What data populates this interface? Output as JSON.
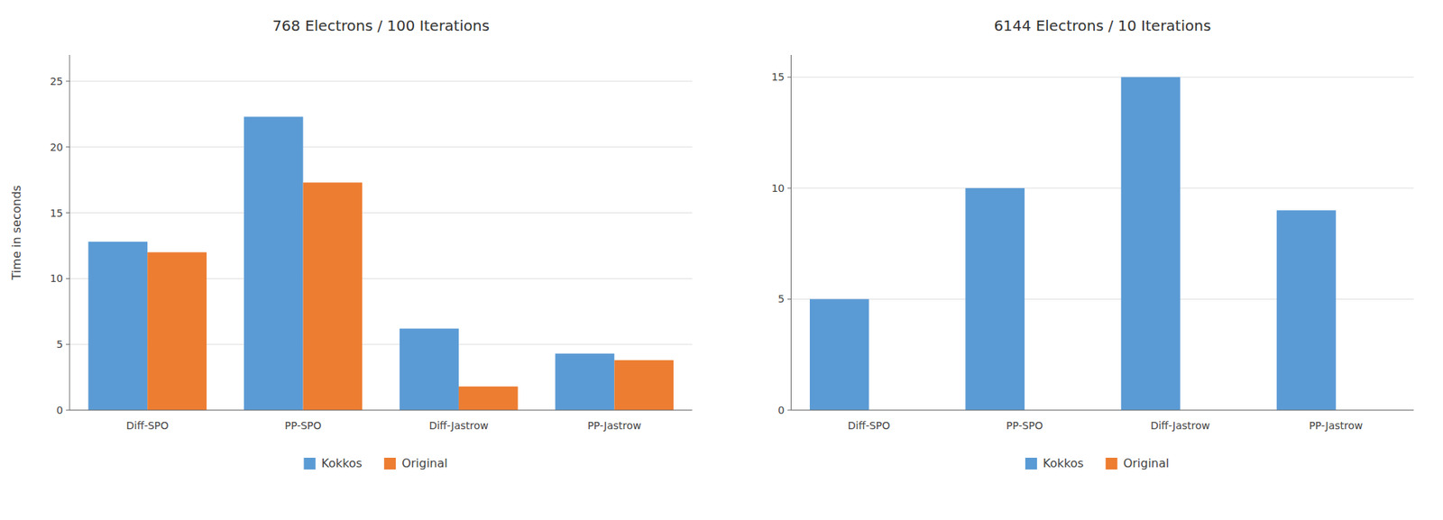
{
  "chart_data": [
    {
      "type": "bar",
      "title": "768 Electrons / 100 Iterations",
      "ylabel": "Time in seconds",
      "categories": [
        "Diff-SPO",
        "PP-SPO",
        "Diff-Jastrow",
        "PP-Jastrow"
      ],
      "series": [
        {
          "name": "Kokkos",
          "color": "#5B9BD5",
          "values": [
            12.8,
            22.3,
            6.2,
            4.3
          ]
        },
        {
          "name": "Original",
          "color": "#ED7D31",
          "values": [
            12.0,
            17.3,
            1.8,
            3.8
          ]
        }
      ],
      "ylim": [
        0,
        27
      ],
      "yticks": [
        0,
        5,
        10,
        15,
        20,
        25
      ],
      "grid": true,
      "legend": "bottom"
    },
    {
      "type": "bar",
      "title": "6144 Electrons / 10 Iterations",
      "categories": [
        "Diff-SPO",
        "PP-SPO",
        "Diff-Jastrow",
        "PP-Jastrow"
      ],
      "series": [
        {
          "name": "Kokkos",
          "color": "#5B9BD5",
          "values": [
            5.0,
            10.0,
            15.0,
            9.0
          ]
        },
        {
          "name": "Original",
          "color": "#ED7D31",
          "values": [
            0,
            0,
            0,
            0
          ]
        }
      ],
      "ylim": [
        0,
        16
      ],
      "yticks": [
        0,
        5,
        10,
        15
      ],
      "grid": true,
      "legend": "bottom"
    }
  ]
}
